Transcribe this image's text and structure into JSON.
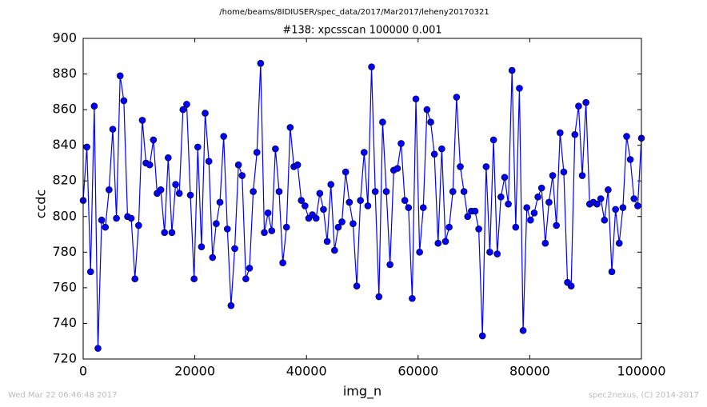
{
  "chart_data": {
    "type": "line",
    "suptitle": "/home/beams/8IDIUSER/spec_data/2017/Mar2017/leheny20170321",
    "title": "#138: xpcsscan 100000 0.001",
    "x_label": "img_n",
    "y_label": "ccdc",
    "footer_left": "Wed Mar 22 06:46:48 2017",
    "footer_right": "spec2nexus, (C) 2014-2017",
    "xlim": [
      0,
      100000
    ],
    "ylim": [
      720,
      900
    ],
    "xticks": [
      0,
      20000,
      40000,
      60000,
      80000,
      100000
    ],
    "yticks": [
      720,
      740,
      760,
      780,
      800,
      820,
      840,
      860,
      880,
      900
    ],
    "x": [
      0,
      662,
      1325,
      1987,
      2649,
      3311,
      3974,
      4636,
      5298,
      5960,
      6623,
      7285,
      7947,
      8609,
      9272,
      9934,
      10596,
      11258,
      11921,
      12583,
      13245,
      13907,
      14570,
      15232,
      15894,
      16556,
      17219,
      17881,
      18543,
      19205,
      19868,
      20530,
      21192,
      21854,
      22517,
      23179,
      23841,
      24503,
      25166,
      25828,
      26490,
      27152,
      27815,
      28477,
      29139,
      29801,
      30464,
      31126,
      31788,
      32450,
      33113,
      33775,
      34437,
      35099,
      35762,
      36424,
      37086,
      37748,
      38411,
      39073,
      39735,
      40397,
      41060,
      41722,
      42384,
      43046,
      43709,
      44371,
      45033,
      45695,
      46358,
      47020,
      47682,
      48344,
      49007,
      49669,
      50331,
      50993,
      51656,
      52318,
      52980,
      53642,
      54305,
      54967,
      55629,
      56291,
      56954,
      57616,
      58278,
      58940,
      59603,
      60265,
      60927,
      61589,
      62252,
      62914,
      63576,
      64238,
      64901,
      65563,
      66225,
      66887,
      67550,
      68212,
      68874,
      69536,
      70199,
      70861,
      71523,
      72185,
      72848,
      73510,
      74172,
      74834,
      75497,
      76159,
      76821,
      77483,
      78146,
      78808,
      79470,
      80132,
      80795,
      81457,
      82119,
      82781,
      83444,
      84106,
      84768,
      85430,
      86093,
      86755,
      87417,
      88079,
      88742,
      89404,
      90066,
      90728,
      91391,
      92053,
      92715,
      93377,
      94040,
      94702,
      95364,
      96026,
      96689,
      97351,
      98013,
      98675,
      99338,
      100000
    ],
    "series": [
      {
        "color": "#0000ff",
        "values": [
          809,
          839,
          769,
          862,
          726,
          798,
          794,
          815,
          849,
          799,
          879,
          865,
          800,
          799,
          765,
          795,
          854,
          830,
          829,
          843,
          813,
          815,
          791,
          833,
          791,
          818,
          813,
          860,
          863,
          812,
          765,
          839,
          783,
          858,
          831,
          777,
          796,
          808,
          845,
          793,
          750,
          782,
          829,
          823,
          765,
          771,
          814,
          836,
          886,
          791,
          802,
          792,
          838,
          814,
          774,
          794,
          850,
          828,
          829,
          809,
          806,
          799,
          801,
          799,
          813,
          804,
          786,
          818,
          781,
          794,
          797,
          825,
          808,
          796,
          761,
          809,
          836,
          806,
          884,
          814,
          755,
          853,
          814,
          773,
          826,
          827,
          841,
          809,
          805,
          754,
          866,
          780,
          805,
          860,
          853,
          835,
          785,
          838,
          786,
          794,
          814,
          867,
          828,
          814,
          800,
          803,
          803,
          793,
          733,
          828,
          780,
          843,
          779,
          811,
          822,
          807,
          882,
          794,
          872,
          736,
          805,
          798,
          802,
          811,
          816,
          785,
          808,
          823,
          795,
          847,
          825,
          763,
          761,
          846,
          862,
          823,
          864,
          807,
          808,
          807,
          810,
          798,
          815,
          769,
          804,
          785,
          805,
          845,
          832,
          810,
          806,
          844
        ]
      }
    ]
  }
}
